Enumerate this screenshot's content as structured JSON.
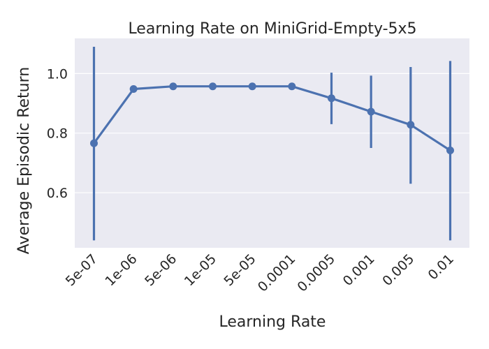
{
  "chart_data": {
    "type": "line",
    "title": "Learning Rate on MiniGrid-Empty-5x5",
    "xlabel": "Learning Rate",
    "ylabel": "Average Episodic Return",
    "categories": [
      "5e-07",
      "1e-06",
      "5e-06",
      "1e-05",
      "5e-05",
      "0.0001",
      "0.0005",
      "0.001",
      "0.005",
      "0.01"
    ],
    "series": [
      {
        "values": [
          0.766,
          0.948,
          0.957,
          0.957,
          0.957,
          0.957,
          0.917,
          0.872,
          0.828,
          0.742
        ],
        "error_low": [
          0.44,
          0.94,
          0.955,
          0.955,
          0.955,
          0.955,
          0.83,
          0.75,
          0.63,
          0.44
        ],
        "error_high": [
          1.09,
          0.957,
          0.959,
          0.959,
          0.959,
          0.959,
          1.003,
          0.993,
          1.022,
          1.042
        ],
        "color": "#4c72b0"
      }
    ],
    "yticks": [
      "0.6",
      "0.8",
      "1.0"
    ],
    "ylim": [
      0.415,
      1.118
    ],
    "grid": true,
    "style": {
      "background": "#eaeaf2",
      "grid_color": "#ffffff"
    }
  }
}
